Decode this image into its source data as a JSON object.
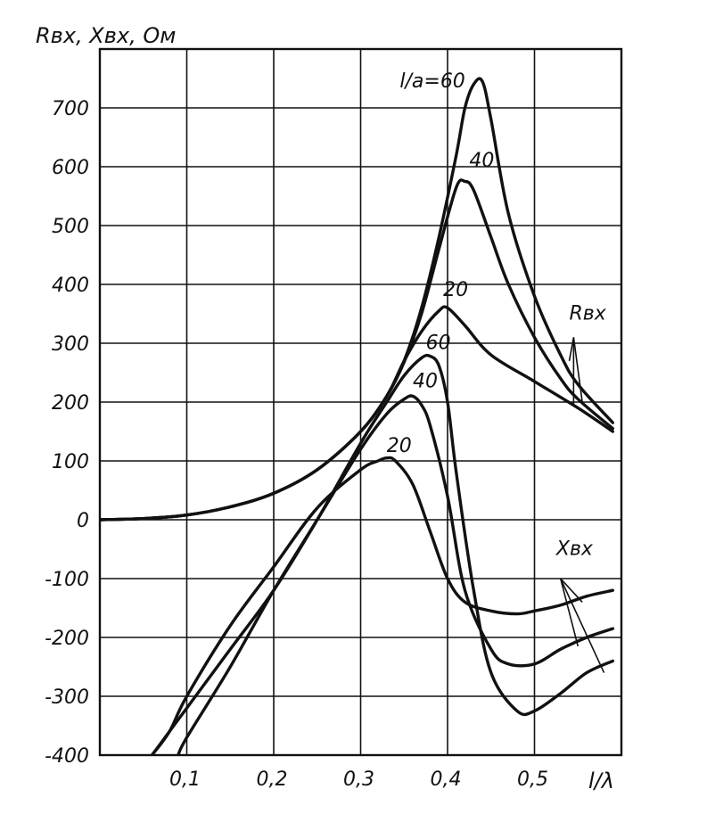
{
  "chart_data": {
    "type": "line",
    "ylabel": "Rвх, Xвх, Ом",
    "xlabel": "l/λ",
    "xlim": [
      0.0,
      0.6
    ],
    "ylim": [
      -400,
      800
    ],
    "x_ticks": [
      0.1,
      0.2,
      0.3,
      0.4,
      0.5
    ],
    "x_tick_labels": [
      "0,1",
      "0,2",
      "0,3",
      "0,4",
      "0,5"
    ],
    "y_ticks": [
      -400,
      -300,
      -200,
      -100,
      0,
      100,
      200,
      300,
      400,
      500,
      600,
      700
    ],
    "y_tick_labels": [
      "-400",
      "-300",
      "-200",
      "-100",
      "0",
      "100",
      "200",
      "300",
      "400",
      "500",
      "600",
      "700"
    ],
    "grid": true,
    "line_color": "#111111",
    "series": [
      {
        "group": "R",
        "x": [
          0.0,
          0.05,
          0.1,
          0.15,
          0.2,
          0.25,
          0.3,
          0.33,
          0.35,
          0.37,
          0.39,
          0.41,
          0.42,
          0.43,
          0.44,
          0.45,
          0.47,
          0.5,
          0.53,
          0.55,
          0.59
        ],
        "y": [
          0,
          2,
          8,
          22,
          45,
          85,
          150,
          210,
          270,
          360,
          480,
          620,
          700,
          740,
          745,
          680,
          520,
          380,
          280,
          230,
          165
        ]
      },
      {
        "group": "R",
        "x": [
          0.0,
          0.05,
          0.1,
          0.15,
          0.2,
          0.25,
          0.3,
          0.33,
          0.35,
          0.37,
          0.39,
          0.41,
          0.42,
          0.43,
          0.45,
          0.47,
          0.5,
          0.53,
          0.55,
          0.59
        ],
        "y": [
          0,
          2,
          8,
          22,
          45,
          85,
          150,
          210,
          268,
          350,
          460,
          565,
          575,
          560,
          480,
          400,
          310,
          240,
          205,
          155
        ]
      },
      {
        "group": "R",
        "x": [
          0.0,
          0.05,
          0.1,
          0.15,
          0.2,
          0.25,
          0.3,
          0.33,
          0.35,
          0.37,
          0.39,
          0.4,
          0.42,
          0.45,
          0.5,
          0.55,
          0.59
        ],
        "y": [
          0,
          2,
          8,
          22,
          45,
          85,
          150,
          210,
          270,
          320,
          355,
          360,
          330,
          280,
          235,
          190,
          150
        ]
      },
      {
        "group": "X",
        "x": [
          0.06,
          0.08,
          0.1,
          0.15,
          0.2,
          0.25,
          0.3,
          0.33,
          0.35,
          0.37,
          0.38,
          0.39,
          0.4,
          0.41,
          0.43,
          0.45,
          0.48,
          0.5,
          0.53,
          0.56,
          0.59
        ],
        "y": [
          -400,
          -360,
          -320,
          -220,
          -120,
          0,
          130,
          200,
          245,
          275,
          278,
          262,
          200,
          80,
          -120,
          -260,
          -325,
          -325,
          -295,
          -260,
          -240
        ]
      },
      {
        "group": "X",
        "x": [
          0.09,
          0.1,
          0.15,
          0.2,
          0.25,
          0.3,
          0.33,
          0.35,
          0.36,
          0.37,
          0.38,
          0.4,
          0.42,
          0.45,
          0.47,
          0.5,
          0.53,
          0.56,
          0.59
        ],
        "y": [
          -400,
          -370,
          -250,
          -120,
          0,
          120,
          180,
          205,
          210,
          195,
          160,
          40,
          -120,
          -220,
          -245,
          -245,
          -220,
          -200,
          -185
        ]
      },
      {
        "group": "X",
        "x": [
          0.06,
          0.08,
          0.1,
          0.15,
          0.2,
          0.25,
          0.3,
          0.32,
          0.33,
          0.34,
          0.36,
          0.38,
          0.4,
          0.42,
          0.45,
          0.48,
          0.5,
          0.53,
          0.56,
          0.59
        ],
        "y": [
          -400,
          -360,
          -300,
          -180,
          -80,
          20,
          85,
          100,
          105,
          100,
          60,
          -20,
          -100,
          -140,
          -155,
          -160,
          -155,
          -145,
          -130,
          -120
        ]
      }
    ],
    "annotations": [
      {
        "text": "l/a=60",
        "x": 0.345,
        "y": 735
      },
      {
        "text": "40",
        "x": 0.425,
        "y": 600
      },
      {
        "text": "20",
        "x": 0.395,
        "y": 380
      },
      {
        "text": "60",
        "x": 0.375,
        "y": 290
      },
      {
        "text": "40",
        "x": 0.36,
        "y": 225
      },
      {
        "text": "20",
        "x": 0.33,
        "y": 115
      },
      {
        "text": "Rвх",
        "x": 0.54,
        "y": 340
      },
      {
        "text": "Xвх",
        "x": 0.525,
        "y": -60
      }
    ],
    "callouts": [
      {
        "anchor": [
          0.545,
          310
        ],
        "targets": [
          [
            0.555,
            200
          ],
          [
            0.545,
            195
          ],
          [
            0.54,
            270
          ]
        ]
      },
      {
        "anchor": [
          0.53,
          -100
        ],
        "targets": [
          [
            0.555,
            -140
          ],
          [
            0.55,
            -215
          ],
          [
            0.58,
            -260
          ]
        ]
      }
    ]
  }
}
